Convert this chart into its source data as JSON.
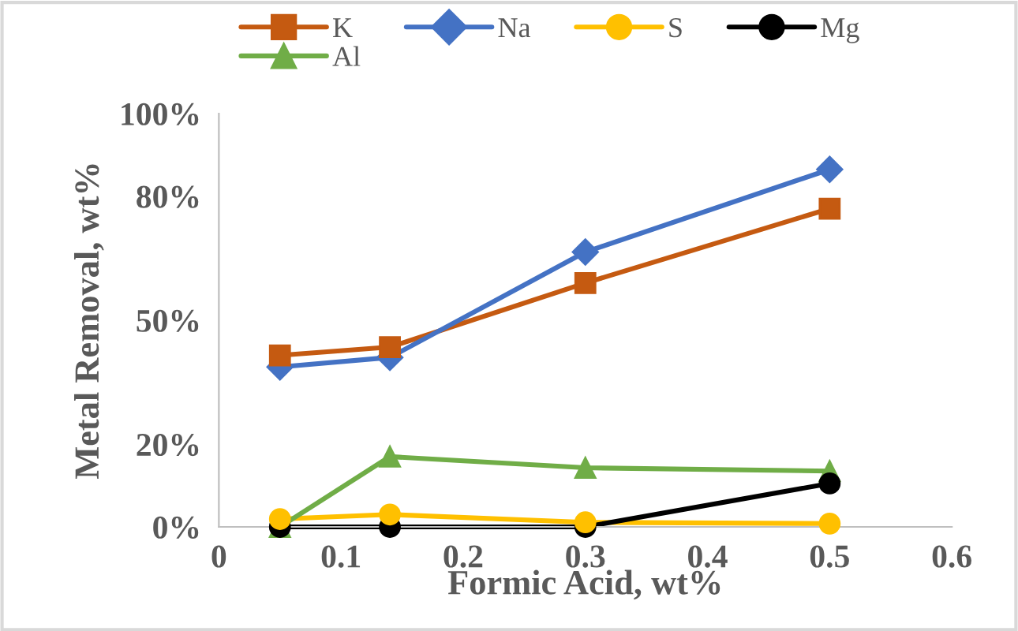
{
  "chart_data": {
    "type": "line",
    "xlabel": "Formic Acid, wt%",
    "ylabel": "Metal Removal, wt%",
    "x": [
      0.05,
      0.14,
      0.3,
      0.5
    ],
    "xlim": [
      0,
      0.6
    ],
    "xticks": [
      0,
      0.1,
      0.2,
      0.3,
      0.4,
      0.5,
      0.6
    ],
    "ylim": [
      0,
      100
    ],
    "yticks": [
      {
        "value": 0,
        "label": "0%"
      },
      {
        "value": 20,
        "label": "20%"
      },
      {
        "value": 50,
        "label": "50%"
      },
      {
        "value": 80,
        "label": "80%"
      },
      {
        "value": 100,
        "label": "100%"
      }
    ],
    "grid": false,
    "legend": "top",
    "series": [
      {
        "name": "K",
        "color": "#c55a11",
        "marker": "square",
        "values": [
          41.5,
          43.5,
          59,
          77
        ]
      },
      {
        "name": "Na",
        "color": "#4472c4",
        "marker": "diamond",
        "values": [
          38.7,
          41,
          66.5,
          86.5
        ]
      },
      {
        "name": "S",
        "color": "#ffc000",
        "marker": "circle",
        "values": [
          1.9,
          3,
          1.1,
          0.8
        ]
      },
      {
        "name": "Mg",
        "color": "#000000",
        "marker": "circle",
        "values": [
          0,
          0,
          0,
          10.5
        ]
      },
      {
        "name": "Al",
        "color": "#70ad47",
        "marker": "triangle",
        "values": [
          0,
          17,
          14.3,
          13.5
        ]
      }
    ]
  }
}
